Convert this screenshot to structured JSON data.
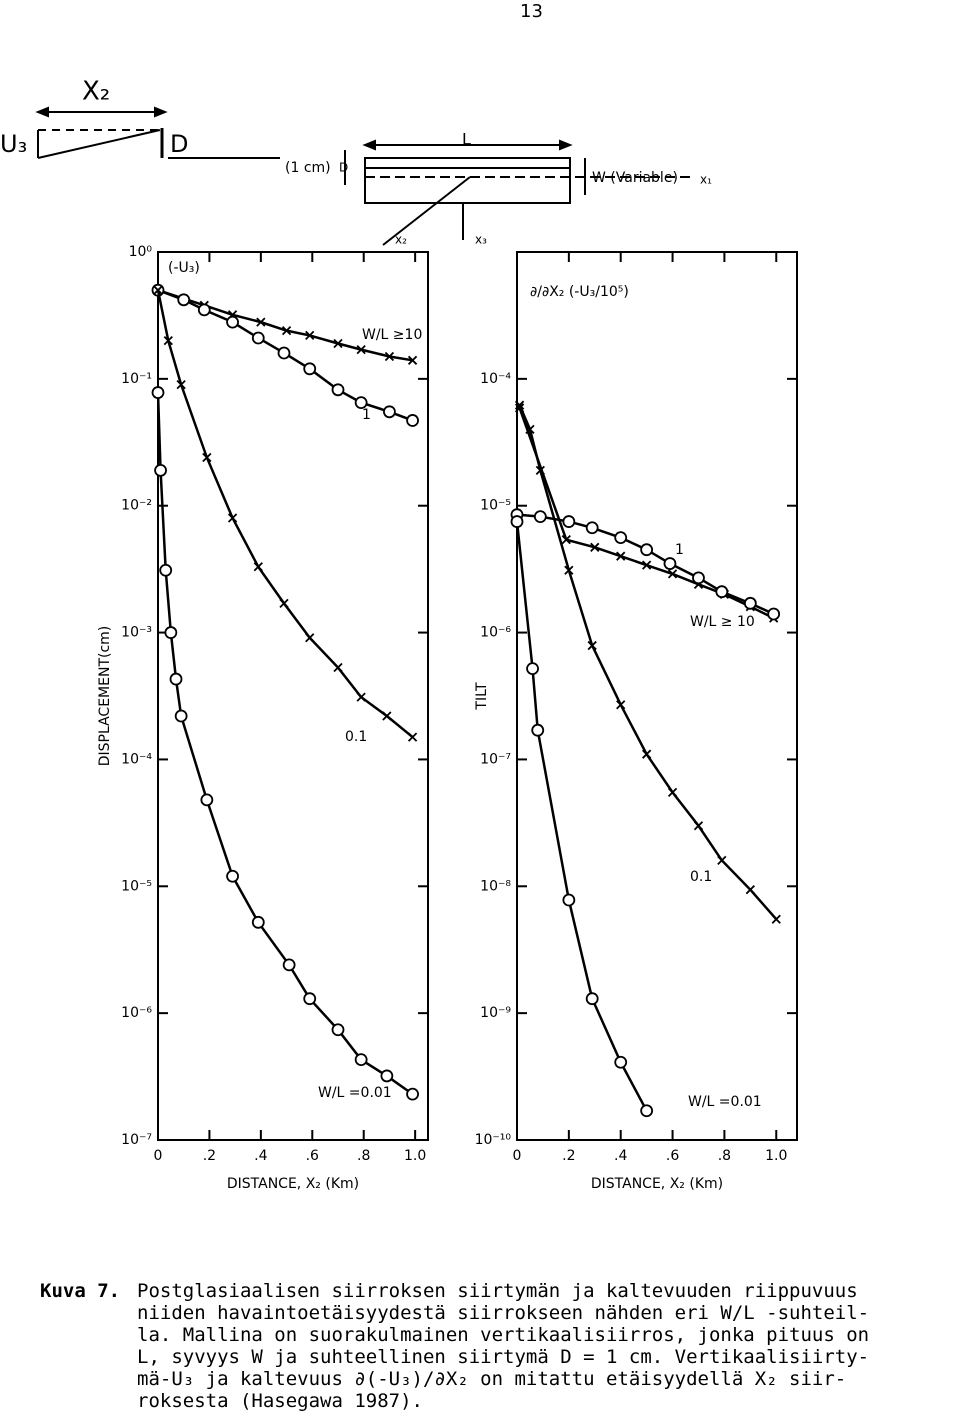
{
  "page_number": "13",
  "diagram": {
    "labels": [
      "X₂",
      "U₃",
      "D",
      "L",
      "(1 cm)",
      "D",
      "W (Variable)",
      "x₁",
      "x₂",
      "x₃"
    ]
  },
  "chart_data": [
    {
      "type": "line",
      "title": "(-U₃)",
      "ylabel": "DISPLACEMENT(cm)",
      "xlabel": "DISTANCE, X₂ (Km)",
      "yscale": "log",
      "ylim": [
        1e-07,
        1
      ],
      "yticks": [
        {
          "value": 1,
          "label": "10⁰"
        },
        {
          "value": 0.1,
          "label": "10⁻¹"
        },
        {
          "value": 0.01,
          "label": "10⁻²"
        },
        {
          "value": 0.001,
          "label": "10⁻³"
        },
        {
          "value": 0.0001,
          "label": "10⁻⁴"
        },
        {
          "value": 1e-05,
          "label": "10⁻⁵"
        },
        {
          "value": 1e-06,
          "label": "10⁻⁶"
        },
        {
          "value": 1e-07,
          "label": "10⁻⁷"
        }
      ],
      "xlim": [
        0,
        1.05
      ],
      "xticks": [
        0,
        {
          "value": 0.2,
          "label": ".2"
        },
        {
          "value": 0.4,
          "label": ".4"
        },
        {
          "value": 0.6,
          "label": ".6"
        },
        {
          "value": 0.8,
          "label": ".8"
        },
        {
          "value": 1,
          "label": "1.0"
        }
      ],
      "series": [
        {
          "name": "W/L ≥10",
          "color": "#000000",
          "marker": "x",
          "x": [
            0,
            0.18,
            0.29,
            0.4,
            0.5,
            0.59,
            0.7,
            0.79,
            0.9,
            0.99
          ],
          "values": [
            0.5,
            0.38,
            0.32,
            0.28,
            0.24,
            0.22,
            0.19,
            0.17,
            0.15,
            0.14
          ]
        },
        {
          "name": "1",
          "color": "#000000",
          "marker": "o",
          "x": [
            0,
            0.1,
            0.18,
            0.29,
            0.39,
            0.49,
            0.59,
            0.7,
            0.79,
            0.9,
            0.99
          ],
          "values": [
            0.5,
            0.42,
            0.35,
            0.28,
            0.21,
            0.16,
            0.12,
            0.082,
            0.065,
            0.055,
            0.047
          ]
        },
        {
          "name": "0.1",
          "color": "#000000",
          "marker": "x",
          "x": [
            0,
            0.04,
            0.09,
            0.19,
            0.29,
            0.39,
            0.49,
            0.59,
            0.7,
            0.79,
            0.89,
            0.99
          ],
          "values": [
            0.5,
            0.2,
            0.09,
            0.024,
            0.008,
            0.0033,
            0.0017,
            0.00091,
            0.00053,
            0.00031,
            0.00022,
            0.00015
          ]
        },
        {
          "name": "W/L =0.01",
          "color": "#000000",
          "marker": "o",
          "x": [
            0,
            0.01,
            0.03,
            0.05,
            0.07,
            0.09,
            0.19,
            0.29,
            0.39,
            0.51,
            0.59,
            0.7,
            0.79,
            0.89,
            0.99
          ],
          "values": [
            0.078,
            0.019,
            0.0031,
            0.001,
            0.00043,
            0.00022,
            4.8e-05,
            1.2e-05,
            5.2e-06,
            2.4e-06,
            1.3e-06,
            7.4e-07,
            4.3e-07,
            3.2e-07,
            2.3e-07
          ]
        }
      ]
    },
    {
      "type": "line",
      "title": "∂/∂X₂ (-U₃/10⁵)",
      "ylabel": "TILT",
      "xlabel": "DISTANCE, X₂ (Km)",
      "yscale": "log",
      "ylim": [
        1e-10,
        0.001
      ],
      "yticks": [
        {
          "value": 0.0001,
          "label": "10⁻⁴"
        },
        {
          "value": 1e-05,
          "label": "10⁻⁵"
        },
        {
          "value": 1e-06,
          "label": "10⁻⁶"
        },
        {
          "value": 1e-07,
          "label": "10⁻⁷"
        },
        {
          "value": 1e-08,
          "label": "10⁻⁸"
        },
        {
          "value": 1e-09,
          "label": "10⁻⁹"
        },
        {
          "value": 1e-10,
          "label": "10⁻¹⁰"
        }
      ],
      "xlim": [
        0,
        1.08
      ],
      "xticks": [
        0,
        {
          "value": 0.2,
          "label": ".2"
        },
        {
          "value": 0.4,
          "label": ".4"
        },
        {
          "value": 0.6,
          "label": ".6"
        },
        {
          "value": 0.8,
          "label": ".8"
        },
        {
          "value": 1,
          "label": "1.0"
        }
      ],
      "series": [
        {
          "name": "W/L ≥ 10",
          "color": "#000000",
          "marker": "x",
          "x": [
            0.01,
            0.19,
            0.3,
            0.4,
            0.5,
            0.6,
            0.7,
            0.8,
            0.9,
            0.99
          ],
          "values": [
            5.9e-05,
            5.4e-06,
            4.7e-06,
            4e-06,
            3.4e-06,
            2.9e-06,
            2.4e-06,
            2e-06,
            1.6e-06,
            1.3e-06
          ]
        },
        {
          "name": "1",
          "color": "#000000",
          "marker": "o",
          "x": [
            0,
            0.09,
            0.2,
            0.29,
            0.4,
            0.5,
            0.59,
            0.7,
            0.79,
            0.9,
            0.99
          ],
          "values": [
            8.5e-06,
            8.2e-06,
            7.5e-06,
            6.7e-06,
            5.6e-06,
            4.5e-06,
            3.5e-06,
            2.7e-06,
            2.1e-06,
            1.7e-06,
            1.4e-06
          ]
        },
        {
          "name": "0.1",
          "color": "#000000",
          "marker": "x",
          "x": [
            0.01,
            0.05,
            0.09,
            0.2,
            0.29,
            0.4,
            0.5,
            0.6,
            0.7,
            0.79,
            0.9,
            1.0
          ],
          "values": [
            6.2e-05,
            4e-05,
            1.9e-05,
            3.1e-06,
            7.9e-07,
            2.7e-07,
            1.1e-07,
            5.5e-08,
            3e-08,
            1.6e-08,
            9.4e-09,
            5.5e-09
          ]
        },
        {
          "name": "W/L =0.01",
          "color": "#000000",
          "marker": "o",
          "x": [
            0,
            0.06,
            0.08,
            0.2,
            0.29,
            0.4,
            0.5
          ],
          "values": [
            7.5e-06,
            5.2e-07,
            1.7e-07,
            7.8e-09,
            1.3e-09,
            4.1e-10,
            1.7e-10
          ]
        }
      ]
    }
  ],
  "caption": {
    "label": "Kuva 7.",
    "lines": [
      "Postglasiaalisen siirroksen siirtymän ja kaltevuuden riippuvuus",
      "niiden havaintoetäisyydestä siirrokseen nähden eri W/L -suhteil-",
      "la. Mallina on suorakulmainen vertikaalisiirros, jonka pituus on",
      "L, syvyys W ja suhteellinen siirtymä D = 1 cm. Vertikaalisiirty-",
      "mä-U₃ ja kaltevuus ∂(-U₃)/∂X₂ on mitattu etäisyydellä X₂ siir-",
      "roksesta (Hasegawa 1987)."
    ]
  }
}
